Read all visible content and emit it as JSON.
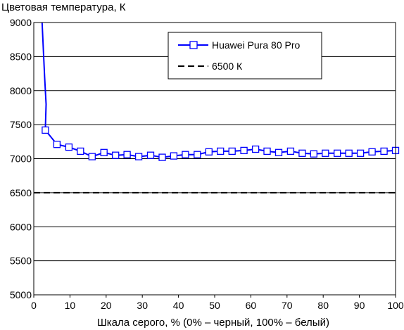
{
  "chart_data": {
    "type": "line",
    "ylabel": "Цветовая температура, К",
    "xlabel": "Шкала серого, % (0% – черный, 100% – белый)",
    "xlim": [
      0,
      100
    ],
    "ylim": [
      5000,
      9000
    ],
    "x_ticks": [
      "0",
      "10",
      "20",
      "30",
      "40",
      "50",
      "60",
      "70",
      "80",
      "90",
      "100"
    ],
    "y_ticks": [
      "5000",
      "5500",
      "6000",
      "6500",
      "7000",
      "7500",
      "8000",
      "8500",
      "9000"
    ],
    "grid": "horizontal",
    "legend_position": "top-right",
    "series": [
      {
        "name": "Huawei Pura 80 Pro",
        "color": "#0000ff",
        "marker": "open-square",
        "steep_start": [
          [
            2.3,
            9000
          ],
          [
            3.0,
            8200
          ],
          [
            3.4,
            7800
          ]
        ],
        "points": [
          [
            3.2,
            7420
          ],
          [
            6.4,
            7210
          ],
          [
            9.7,
            7170
          ],
          [
            12.9,
            7110
          ],
          [
            16.1,
            7030
          ],
          [
            19.4,
            7090
          ],
          [
            22.6,
            7050
          ],
          [
            25.8,
            7060
          ],
          [
            29.0,
            7030
          ],
          [
            32.3,
            7050
          ],
          [
            35.5,
            7020
          ],
          [
            38.7,
            7040
          ],
          [
            41.9,
            7060
          ],
          [
            45.2,
            7060
          ],
          [
            48.4,
            7100
          ],
          [
            51.6,
            7110
          ],
          [
            54.8,
            7110
          ],
          [
            58.1,
            7120
          ],
          [
            61.3,
            7140
          ],
          [
            64.5,
            7110
          ],
          [
            67.7,
            7090
          ],
          [
            71.0,
            7110
          ],
          [
            74.2,
            7080
          ],
          [
            77.4,
            7070
          ],
          [
            80.6,
            7080
          ],
          [
            83.9,
            7080
          ],
          [
            87.1,
            7080
          ],
          [
            90.3,
            7080
          ],
          [
            93.5,
            7100
          ],
          [
            96.8,
            7110
          ],
          [
            100,
            7120
          ]
        ]
      },
      {
        "name": "6500 К",
        "color": "#000000",
        "style": "dashed",
        "points": [
          [
            0,
            6500
          ],
          [
            100,
            6500
          ]
        ]
      }
    ]
  }
}
